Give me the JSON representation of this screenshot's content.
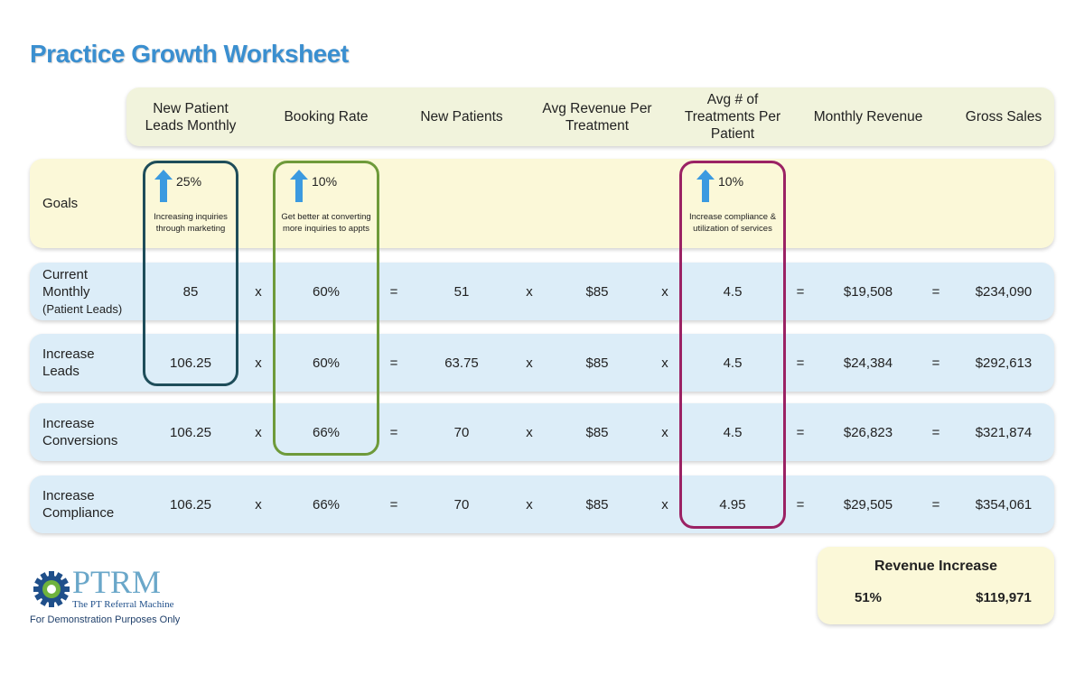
{
  "title": "Practice Growth Worksheet",
  "header": {
    "row_label": null,
    "columns": [
      "New Patient Leads Monthly",
      "Booking Rate",
      "New Patients",
      "Avg Revenue Per Treatment",
      "Avg # of Treatments Per Patient",
      "Monthly Revenue",
      "Gross Sales"
    ]
  },
  "operators": [
    "x",
    "=",
    "x",
    "x",
    "=",
    "="
  ],
  "goals": {
    "label": "Goals",
    "items": [
      {
        "value": "25%",
        "note": "Increasing inquiries through marketing"
      },
      {
        "value": "10%",
        "note": "Get better at converting more inquiries to appts"
      },
      {
        "value": "10%",
        "note": "Increase compliance & utilization of services"
      }
    ]
  },
  "rows": [
    {
      "label": "Current Monthly",
      "sublabel": "(Patient Leads)",
      "cells": [
        "85",
        "60%",
        "51",
        "$85",
        "4.5",
        "$19,508",
        "$234,090"
      ]
    },
    {
      "label": "Increase Leads",
      "cells": [
        "106.25",
        "60%",
        "63.75",
        "$85",
        "4.5",
        "$24,384",
        "$292,613"
      ]
    },
    {
      "label": "Increase Conversions",
      "cells": [
        "106.25",
        "66%",
        "70",
        "$85",
        "4.5",
        "$26,823",
        "$321,874"
      ]
    },
    {
      "label": "Increase Compliance",
      "cells": [
        "106.25",
        "66%",
        "70",
        "$85",
        "4.95",
        "$29,505",
        "$354,061"
      ]
    }
  ],
  "revenue_increase": {
    "title": "Revenue Increase",
    "percent": "51%",
    "amount": "$119,971"
  },
  "logo": {
    "name": "PTRM",
    "tagline": "The PT Referral Machine"
  },
  "footer": "For Demonstration Purposes Only"
}
